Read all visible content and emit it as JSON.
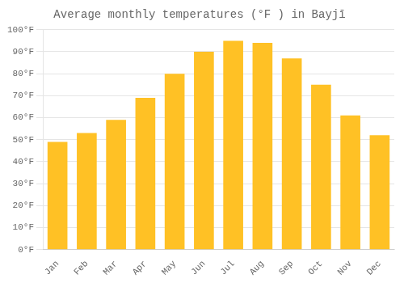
{
  "chart_data": {
    "type": "bar",
    "title": "Average monthly temperatures (°F ) in Bayjī",
    "categories": [
      "Jan",
      "Feb",
      "Mar",
      "Apr",
      "May",
      "Jun",
      "Jul",
      "Aug",
      "Sep",
      "Oct",
      "Nov",
      "Dec"
    ],
    "values": [
      49,
      53,
      59,
      69,
      80,
      90,
      95,
      94,
      87,
      75,
      61,
      52
    ],
    "color": "#FFC125",
    "ylim": [
      0,
      100
    ],
    "yticks": [
      {
        "value": 0,
        "label": "0°F"
      },
      {
        "value": 10,
        "label": "10°F"
      },
      {
        "value": 20,
        "label": "20°F"
      },
      {
        "value": 30,
        "label": "30°F"
      },
      {
        "value": 40,
        "label": "40°F"
      },
      {
        "value": 50,
        "label": "50°F"
      },
      {
        "value": 60,
        "label": "60°F"
      },
      {
        "value": 70,
        "label": "70°F"
      },
      {
        "value": 80,
        "label": "80°F"
      },
      {
        "value": 90,
        "label": "90°F"
      },
      {
        "value": 100,
        "label": "100°F"
      }
    ],
    "grid": true
  }
}
